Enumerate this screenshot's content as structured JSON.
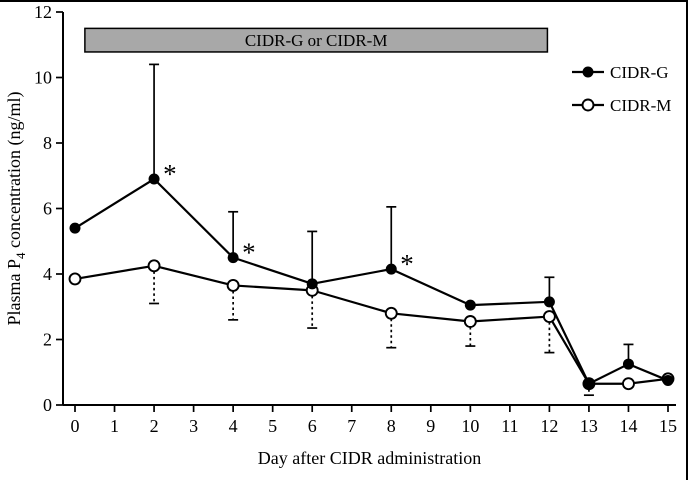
{
  "figure": {
    "background": "#ffffff",
    "frame_color": "#000000"
  },
  "chart_data": {
    "type": "line",
    "title": "",
    "xlabel": "Day after CIDR administration",
    "ylabel_parts": [
      "Plasma P",
      "4",
      " concentration (ng/ml)"
    ],
    "xlim": [
      0,
      15
    ],
    "ylim": [
      0,
      12
    ],
    "x_ticks": [
      0,
      1,
      2,
      3,
      4,
      5,
      6,
      7,
      8,
      9,
      10,
      11,
      12,
      13,
      14,
      15
    ],
    "y_ticks": [
      0,
      2,
      4,
      6,
      8,
      10,
      12
    ],
    "x": [
      0,
      2,
      4,
      6,
      8,
      10,
      12,
      13,
      14,
      15
    ],
    "series": [
      {
        "name": "CIDR-G",
        "marker": "filled-circle",
        "line_style": "solid",
        "error_direction": "up",
        "error_style": "solid",
        "values": [
          5.4,
          6.9,
          4.5,
          3.7,
          4.15,
          3.05,
          3.15,
          0.65,
          1.25,
          0.75
        ],
        "error": [
          0,
          3.5,
          1.4,
          1.6,
          1.9,
          0,
          0.75,
          0,
          0.6,
          0
        ]
      },
      {
        "name": "CIDR-M",
        "marker": "open-circle",
        "line_style": "solid",
        "error_direction": "down",
        "error_style": "dotted",
        "values": [
          3.85,
          4.25,
          3.65,
          3.5,
          2.8,
          2.55,
          2.7,
          0.65,
          0.65,
          0.8
        ],
        "error": [
          0,
          1.15,
          1.05,
          1.15,
          1.05,
          0.75,
          1.1,
          0.35,
          0,
          0
        ]
      }
    ],
    "annotations": {
      "asterisks": [
        {
          "series": "CIDR-G",
          "day": 2,
          "symbol": "*"
        },
        {
          "series": "CIDR-G",
          "day": 4,
          "symbol": "*"
        },
        {
          "series": "CIDR-G",
          "day": 8,
          "symbol": "*"
        }
      ],
      "treatment_bar": {
        "label": "CIDR-G or CIDR-M",
        "day_start": 0.25,
        "day_end": 11.95,
        "y_bottom": 10.78,
        "y_top": 11.5,
        "fill": "#a8a8a8",
        "stroke": "#000000"
      }
    },
    "legend": {
      "position": "top-right",
      "entries": [
        "CIDR-G",
        "CIDR-M"
      ]
    },
    "colors": {
      "axis": "#000000",
      "series": "#000000",
      "grid": "none"
    }
  }
}
